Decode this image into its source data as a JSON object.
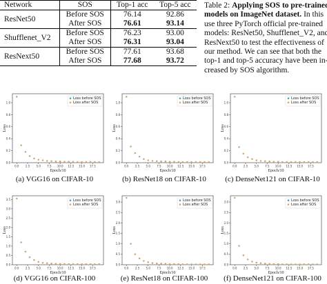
{
  "table": {
    "headers": [
      "Network",
      "SOS",
      "Top-1 acc",
      "Top-5 acc"
    ],
    "groups": [
      {
        "network": "ResNet50",
        "rows": [
          {
            "sos": "Before SOS",
            "top1": "76.14",
            "top5": "92.86"
          },
          {
            "sos": "After SOS",
            "top1": "76.61",
            "top5": "93.14"
          }
        ]
      },
      {
        "network": "Shufflenet_V2",
        "rows": [
          {
            "sos": "Before SOS",
            "top1": "76.23",
            "top5": "93.00"
          },
          {
            "sos": "After SOS",
            "top1": "76.31",
            "top5": "93.04"
          }
        ]
      },
      {
        "network": "ResNext50",
        "rows": [
          {
            "sos": "Before SOS",
            "top1": "77.61",
            "top5": "93.68"
          },
          {
            "sos": "After SOS",
            "top1": "77.68",
            "top5": "93.72"
          }
        ]
      }
    ]
  },
  "caption": {
    "line1_prefix": "Table 2: ",
    "line1_bold": "Applying SOS to pre-trained",
    "line2_bold": "models on ImageNet dataset.",
    "line2_rest": " In this",
    "line3": "use three PyTorch official pre-trained",
    "line4": "models: ResNet50, Shufflenet_V2, and",
    "line5": "ResNext50 to test the effectiveness of",
    "line6": "our method.  We can see that both the",
    "line7": "top-1 and top-5 accuracy have been in-",
    "line8": "creased by SOS algorithm."
  },
  "chart_data": [
    {
      "type": "scatter",
      "caption": "(a) VGG16 on CIFAR-10",
      "xlabel": "Epoch/10",
      "ylabel": "Loss",
      "ylim": [
        0,
        1.15
      ],
      "yticks": [
        0.0,
        0.2,
        0.4,
        0.6,
        0.8,
        1.0
      ],
      "xticks": [
        0.0,
        2.5,
        5.0,
        7.5,
        10.0,
        12.5,
        15.0,
        17.5
      ],
      "legend": "top-right",
      "series": [
        {
          "name": "Loss before SOS",
          "color": "#4ba3c7",
          "x": [
            0,
            1,
            2,
            3,
            4,
            5,
            6,
            7,
            8,
            9,
            10,
            11,
            12,
            13,
            14,
            15,
            16,
            17,
            18,
            19
          ],
          "y": [
            1.1,
            0.29,
            0.18,
            0.11,
            0.07,
            0.05,
            0.04,
            0.03,
            0.025,
            0.02,
            0.02,
            0.015,
            0.015,
            0.015,
            0.01,
            0.01,
            0.01,
            0.01,
            0.01,
            0.01
          ]
        },
        {
          "name": "Loss after SOS",
          "color": "#f0a050",
          "x": [
            0,
            1,
            2,
            3,
            4,
            5,
            6,
            7,
            8,
            9,
            10,
            11,
            12,
            13,
            14,
            15,
            16,
            17,
            18,
            19
          ],
          "y": [
            1.1,
            0.29,
            0.18,
            0.11,
            0.07,
            0.05,
            0.04,
            0.03,
            0.025,
            0.02,
            0.02,
            0.015,
            0.015,
            0.015,
            0.01,
            0.01,
            0.01,
            0.01,
            0.01,
            0.01
          ]
        }
      ]
    },
    {
      "type": "scatter",
      "caption": "(b) ResNet18 on CIFAR-10",
      "xlabel": "Epoch/10",
      "ylabel": "Loss",
      "ylim": [
        0,
        1.15
      ],
      "yticks": [
        0.0,
        0.2,
        0.4,
        0.6,
        0.8,
        1.0
      ],
      "xticks": [
        0.0,
        2.5,
        5.0,
        7.5,
        10.0,
        12.5,
        15.0,
        17.5
      ],
      "legend": "top-right",
      "series": [
        {
          "name": "Loss before SOS",
          "color": "#4ba3c7",
          "x": [
            0,
            1,
            2,
            3,
            4,
            5,
            6,
            7,
            8,
            9,
            10,
            11,
            12,
            13,
            14,
            15,
            16,
            17,
            18,
            19
          ],
          "y": [
            1.1,
            0.27,
            0.16,
            0.1,
            0.06,
            0.04,
            0.03,
            0.025,
            0.02,
            0.02,
            0.015,
            0.015,
            0.01,
            0.01,
            0.01,
            0.01,
            0.01,
            0.01,
            0.01,
            0.01
          ]
        },
        {
          "name": "Loss after SOS",
          "color": "#f0a050",
          "x": [
            0,
            1,
            2,
            3,
            4,
            5,
            6,
            7,
            8,
            9,
            10,
            11,
            12,
            13,
            14,
            15,
            16,
            17,
            18,
            19
          ],
          "y": [
            1.1,
            0.27,
            0.16,
            0.1,
            0.06,
            0.04,
            0.03,
            0.025,
            0.02,
            0.02,
            0.015,
            0.015,
            0.01,
            0.01,
            0.01,
            0.01,
            0.01,
            0.01,
            0.01,
            0.01
          ]
        }
      ]
    },
    {
      "type": "scatter",
      "caption": "(c) DenseNet121 on CIFAR-10",
      "xlabel": "Epoch/10",
      "ylabel": "Loss",
      "ylim": [
        0,
        1.15
      ],
      "yticks": [
        0.0,
        0.2,
        0.4,
        0.6,
        0.8,
        1.0
      ],
      "xticks": [
        0.0,
        2.5,
        5.0,
        7.5,
        10.0,
        12.5,
        15.0,
        17.5
      ],
      "legend": "top-right",
      "series": [
        {
          "name": "Loss before SOS",
          "color": "#4ba3c7",
          "x": [
            0,
            1,
            2,
            3,
            4,
            5,
            6,
            7,
            8,
            9,
            10,
            11,
            12,
            13,
            14,
            15,
            16,
            17,
            18,
            19
          ],
          "y": [
            1.1,
            0.26,
            0.15,
            0.09,
            0.06,
            0.04,
            0.03,
            0.025,
            0.02,
            0.015,
            0.015,
            0.01,
            0.01,
            0.01,
            0.01,
            0.01,
            0.01,
            0.01,
            0.01,
            0.01
          ]
        },
        {
          "name": "Loss after SOS",
          "color": "#f0a050",
          "x": [
            0,
            1,
            2,
            3,
            4,
            5,
            6,
            7,
            8,
            9,
            10,
            11,
            12,
            13,
            14,
            15,
            16,
            17,
            18,
            19
          ],
          "y": [
            1.1,
            0.26,
            0.15,
            0.09,
            0.06,
            0.04,
            0.03,
            0.025,
            0.02,
            0.015,
            0.015,
            0.01,
            0.01,
            0.01,
            0.01,
            0.01,
            0.01,
            0.01,
            0.01,
            0.01
          ]
        }
      ]
    },
    {
      "type": "scatter",
      "caption": "(d) VGG16 on CIFAR-100",
      "xlabel": "Epoch/10",
      "ylabel": "Loss",
      "ylim": [
        0,
        3.7
      ],
      "yticks": [
        0.0,
        0.5,
        1.0,
        1.5,
        2.0,
        2.5,
        3.0,
        3.5
      ],
      "xticks": [
        0.0,
        2.5,
        5.0,
        7.5,
        10.0,
        12.5,
        15.0,
        17.5
      ],
      "legend": "top-right",
      "series": [
        {
          "name": "Loss before SOS",
          "color": "#4ba3c7",
          "x": [
            0,
            1,
            2,
            3,
            4,
            5,
            6,
            7,
            8,
            9,
            10,
            11,
            12,
            13,
            14,
            15,
            16,
            17,
            18,
            19
          ],
          "y": [
            3.55,
            1.2,
            0.7,
            0.4,
            0.25,
            0.15,
            0.1,
            0.08,
            0.06,
            0.05,
            0.04,
            0.04,
            0.03,
            0.03,
            0.03,
            0.03,
            0.03,
            0.03,
            0.03,
            0.03
          ]
        },
        {
          "name": "Loss after SOS",
          "color": "#f0a050",
          "x": [
            0,
            1,
            2,
            3,
            4,
            5,
            6,
            7,
            8,
            9,
            10,
            11,
            12,
            13,
            14,
            15,
            16,
            17,
            18,
            19
          ],
          "y": [
            3.55,
            1.2,
            0.7,
            0.4,
            0.25,
            0.15,
            0.1,
            0.08,
            0.06,
            0.05,
            0.04,
            0.04,
            0.03,
            0.03,
            0.03,
            0.03,
            0.03,
            0.03,
            0.03,
            0.03
          ]
        }
      ]
    },
    {
      "type": "scatter",
      "caption": "(e) ResNet18 on CIFAR-100",
      "xlabel": "Epoch/10",
      "ylabel": "Loss",
      "ylim": [
        0,
        3.3
      ],
      "yticks": [
        0.0,
        0.5,
        1.0,
        1.5,
        2.0,
        2.5,
        3.0
      ],
      "xticks": [
        0.0,
        2.5,
        5.0,
        7.5,
        10.0,
        12.5,
        15.0,
        17.5
      ],
      "legend": "top-right",
      "series": [
        {
          "name": "Loss before SOS",
          "color": "#4ba3c7",
          "x": [
            0,
            1,
            2,
            3,
            4,
            5,
            6,
            7,
            8,
            9,
            10,
            11,
            12,
            13,
            14,
            15,
            16,
            17,
            18,
            19
          ],
          "y": [
            3.2,
            1.0,
            0.5,
            0.3,
            0.18,
            0.12,
            0.08,
            0.06,
            0.05,
            0.04,
            0.03,
            0.03,
            0.03,
            0.02,
            0.02,
            0.02,
            0.02,
            0.02,
            0.02,
            0.02
          ]
        },
        {
          "name": "Loss after SOS",
          "color": "#f0a050",
          "x": [
            0,
            1,
            2,
            3,
            4,
            5,
            6,
            7,
            8,
            9,
            10,
            11,
            12,
            13,
            14,
            15,
            16,
            17,
            18,
            19
          ],
          "y": [
            3.2,
            1.0,
            0.5,
            0.3,
            0.18,
            0.12,
            0.08,
            0.06,
            0.05,
            0.04,
            0.03,
            0.03,
            0.03,
            0.02,
            0.02,
            0.02,
            0.02,
            0.02,
            0.02,
            0.02
          ]
        }
      ]
    },
    {
      "type": "scatter",
      "caption": "(f) DenseNet121 on CIFAR-100",
      "xlabel": "Epoch/10",
      "ylabel": "Loss",
      "ylim": [
        0,
        3.3
      ],
      "yticks": [
        0.0,
        0.5,
        1.0,
        1.5,
        2.0,
        2.5,
        3.0
      ],
      "xticks": [
        0.0,
        2.5,
        5.0,
        7.5,
        10.0,
        12.5,
        15.0,
        17.5
      ],
      "legend": "top-right",
      "series": [
        {
          "name": "Loss before SOS",
          "color": "#4ba3c7",
          "x": [
            0,
            1,
            2,
            3,
            4,
            5,
            6,
            7,
            8,
            9,
            10,
            11,
            12,
            13,
            14,
            15,
            16,
            17,
            18,
            19
          ],
          "y": [
            3.2,
            0.9,
            0.45,
            0.25,
            0.15,
            0.1,
            0.07,
            0.05,
            0.04,
            0.03,
            0.03,
            0.02,
            0.02,
            0.02,
            0.02,
            0.02,
            0.02,
            0.02,
            0.02,
            0.02
          ]
        },
        {
          "name": "Loss after SOS",
          "color": "#f0a050",
          "x": [
            0,
            1,
            2,
            3,
            4,
            5,
            6,
            7,
            8,
            9,
            10,
            11,
            12,
            13,
            14,
            15,
            16,
            17,
            18,
            19
          ],
          "y": [
            3.2,
            0.9,
            0.45,
            0.25,
            0.15,
            0.1,
            0.07,
            0.05,
            0.04,
            0.03,
            0.03,
            0.02,
            0.02,
            0.02,
            0.02,
            0.02,
            0.02,
            0.02,
            0.02,
            0.02
          ]
        }
      ]
    }
  ]
}
